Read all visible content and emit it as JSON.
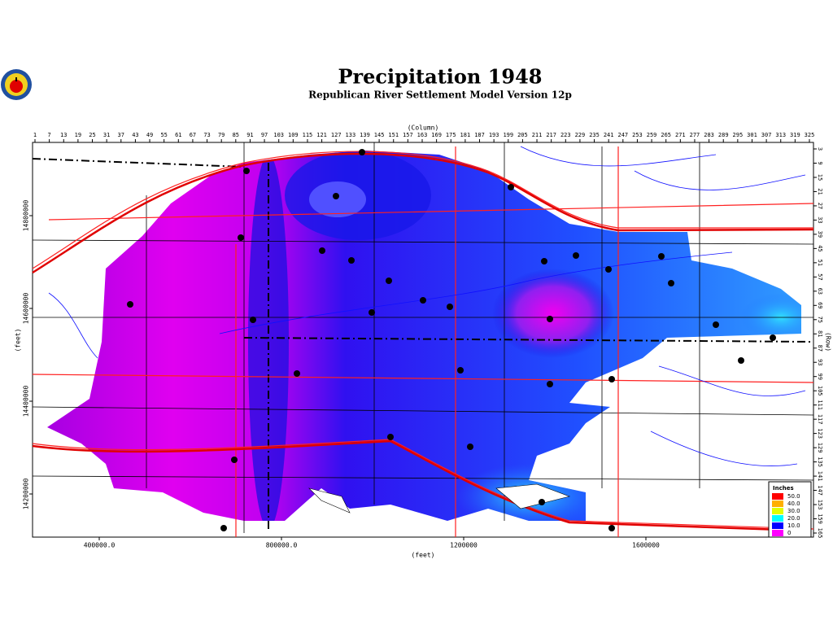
{
  "map": {
    "title": "Precipitation  1948",
    "subtitle": "Republican River Settlement Model Version 12p",
    "column_label": "(Column)",
    "row_label": "(Row)",
    "x_label": "(feet)",
    "y_label": "(feet)",
    "columns": [
      1,
      7,
      13,
      19,
      25,
      31,
      37,
      43,
      49,
      55,
      61,
      67,
      73,
      79,
      85,
      91,
      97,
      103,
      109,
      115,
      121,
      127,
      133,
      139,
      145,
      151,
      157,
      163,
      169,
      175,
      181,
      187,
      193,
      199,
      205,
      211,
      217,
      223,
      229,
      235,
      241,
      247,
      253,
      259,
      265,
      271,
      277,
      283,
      289,
      295,
      301,
      307,
      313,
      319,
      325
    ],
    "rows": [
      3,
      9,
      15,
      21,
      27,
      33,
      39,
      45,
      51,
      57,
      63,
      69,
      75,
      81,
      87,
      93,
      99,
      105,
      111,
      117,
      123,
      129,
      135,
      141,
      147,
      153,
      159,
      165
    ],
    "xticks": [
      {
        "value": 400000,
        "label": "400000.0"
      },
      {
        "value": 800000,
        "label": "800000.0"
      },
      1200000,
      1600000
    ],
    "yticks": [
      14800000,
      14600000,
      14400000,
      14200000
    ],
    "legend": {
      "title": "Inches",
      "items": [
        {
          "value": 50,
          "label": "50.0",
          "color": "#ff0000"
        },
        {
          "value": 40,
          "label": "40.0",
          "color": "#ffb000"
        },
        {
          "value": 30,
          "label": "30.0",
          "color": "#e0ff00"
        },
        {
          "value": 20,
          "label": "20.0",
          "color": "#00ffff"
        },
        {
          "value": 10,
          "label": "10.0",
          "color": "#0000ff"
        },
        {
          "value": 0,
          "label": "0",
          "color": "#ff00ff"
        }
      ]
    }
  }
}
